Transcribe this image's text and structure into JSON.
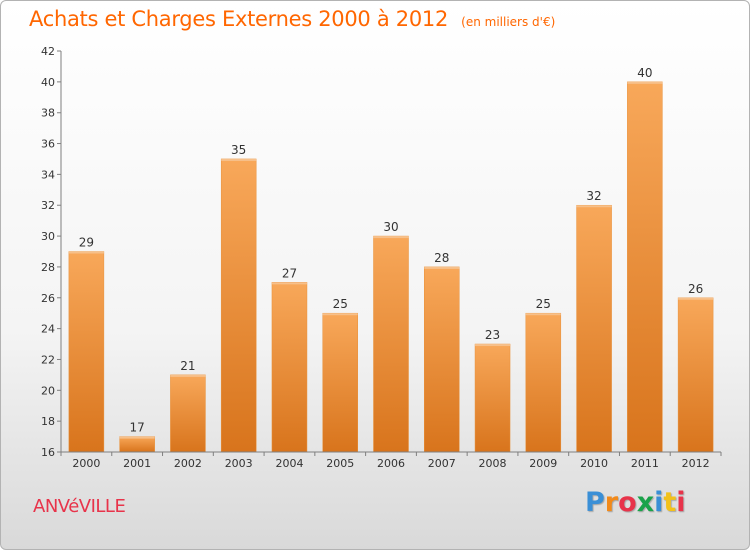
{
  "header": {
    "title": "Achats et Charges Externes 2000 à 2012",
    "unit": "(en milliers d'€)"
  },
  "footer": {
    "commune": "ANVéVILLE",
    "brand": "Proxiti",
    "brand_colors": [
      "#3a8fd6",
      "#f28a1a",
      "#e8334a",
      "#1aa34a",
      "#3a8fd6",
      "#f2c11a",
      "#e8334a"
    ]
  },
  "colors": {
    "title": "#ff6600",
    "bar_top": "#f8a85a",
    "bar_bottom": "#d8741c",
    "axis": "#7f7f7f",
    "grid": "#d0d0d0"
  },
  "chart_data": {
    "type": "bar",
    "categories": [
      "2000",
      "2001",
      "2002",
      "2003",
      "2004",
      "2005",
      "2006",
      "2007",
      "2008",
      "2009",
      "2010",
      "2011",
      "2012"
    ],
    "values": [
      29,
      17,
      21,
      35,
      27,
      25,
      30,
      28,
      23,
      25,
      32,
      40,
      26
    ],
    "ylim": [
      16,
      42
    ],
    "yticks": [
      16,
      18,
      20,
      22,
      24,
      26,
      28,
      30,
      32,
      34,
      36,
      38,
      40,
      42
    ],
    "grid": false,
    "data_labels": true
  }
}
